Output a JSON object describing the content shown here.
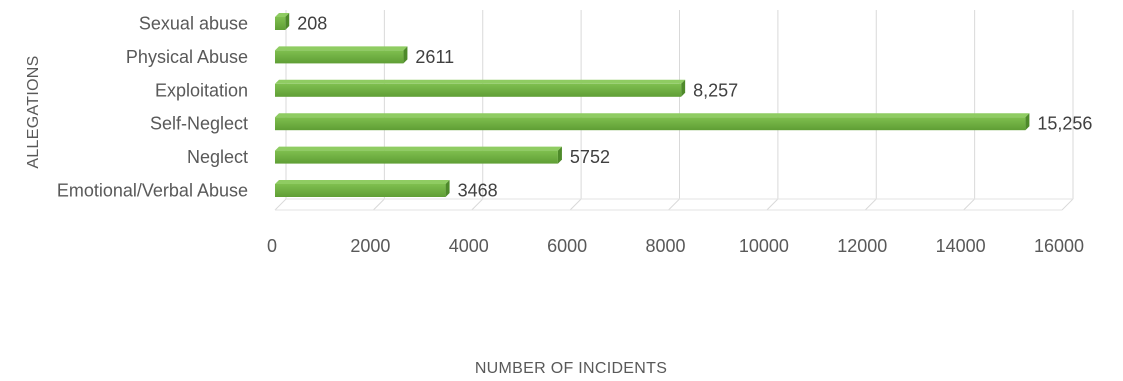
{
  "chart_data": {
    "type": "bar",
    "orientation": "horizontal",
    "categories": [
      "Emotional/Verbal Abuse",
      "Neglect",
      "Self-Neglect",
      "Exploitation",
      "Physical Abuse",
      "Sexual abuse"
    ],
    "values": [
      3468,
      5752,
      15256,
      8257,
      2611,
      208
    ],
    "data_labels": [
      "3468",
      "5752",
      "15,256",
      "8,257",
      "2611",
      "208"
    ],
    "xlabel": "NUMBER OF INCIDENTS",
    "ylabel": "ALLEGATIONS",
    "xlim": [
      0,
      16000
    ],
    "x_ticks": [
      "0",
      "2000",
      "4000",
      "6000",
      "8000",
      "10000",
      "12000",
      "14000",
      "16000"
    ],
    "grid": true,
    "style": "3d",
    "bar_color": "#70AD47"
  }
}
